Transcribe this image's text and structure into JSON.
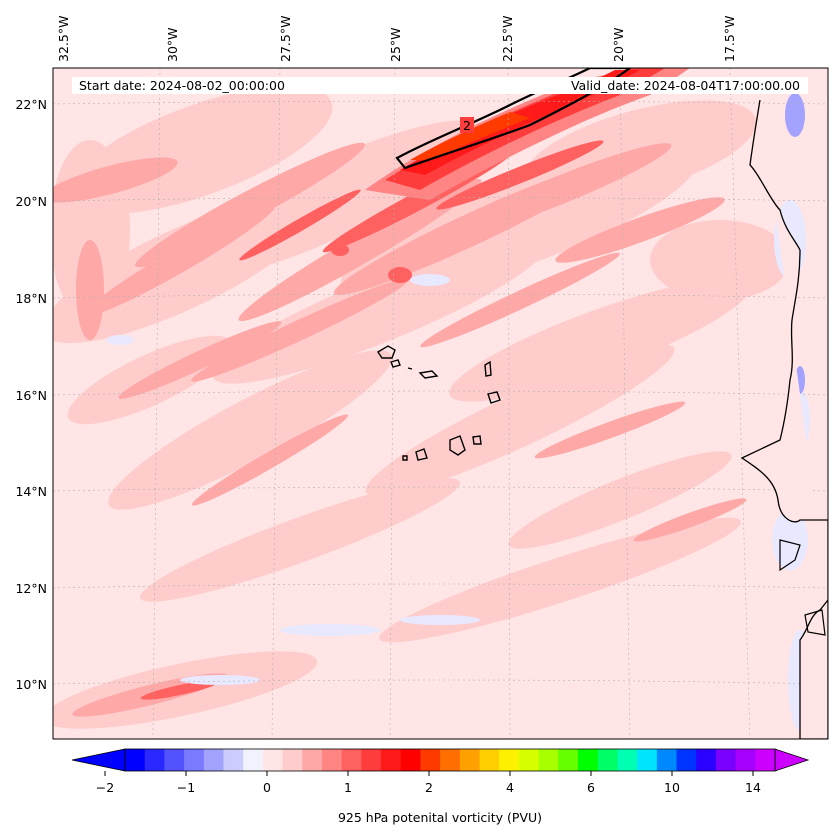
{
  "header": {
    "start_date": "Start date: 2024-08-02_00:00:00",
    "valid_date": "Valid_date: 2024-08-04T17:00:00.00"
  },
  "lon_ticks": [
    {
      "label": "32.5°W",
      "value": -32.5
    },
    {
      "label": "30°W",
      "value": -30
    },
    {
      "label": "27.5°W",
      "value": -27.5
    },
    {
      "label": "25°W",
      "value": -25
    },
    {
      "label": "22.5°W",
      "value": -22.5
    },
    {
      "label": "20°W",
      "value": -20
    },
    {
      "label": "17.5°W",
      "value": -17.5
    }
  ],
  "lat_ticks": [
    {
      "label": "22°N",
      "value": 22
    },
    {
      "label": "20°N",
      "value": 20
    },
    {
      "label": "18°N",
      "value": 18
    },
    {
      "label": "16°N",
      "value": 16
    },
    {
      "label": "14°N",
      "value": 14
    },
    {
      "label": "12°N",
      "value": 12
    },
    {
      "label": "10°N",
      "value": 10
    }
  ],
  "contour_label": "2",
  "colorbar": {
    "title": "925 hPa potenital vorticity (PVU)",
    "tick_labels": [
      "−2",
      "−1",
      "0",
      "1",
      "2",
      "4",
      "6",
      "10",
      "14"
    ],
    "colors": [
      "#0000ff",
      "#2929ff",
      "#5252ff",
      "#7a7aff",
      "#a3a3ff",
      "#ccccff",
      "#f2f2ff",
      "#ffe5e5",
      "#ffcccc",
      "#ffa8a8",
      "#ff8585",
      "#ff6161",
      "#ff3d3d",
      "#ff1a1a",
      "#ff0000",
      "#ff3a00",
      "#ff6f00",
      "#ff9f00",
      "#ffcf00",
      "#fff200",
      "#d7ff00",
      "#a8ff00",
      "#66ff00",
      "#00ff00",
      "#00ff66",
      "#00ffb2",
      "#00e5ff",
      "#0088ff",
      "#0033ff",
      "#2a00ff",
      "#7a00ff",
      "#a600ff",
      "#cc00ff"
    ],
    "under_color": "#0000ff",
    "over_color": "#cc00ff"
  },
  "colors": {
    "background_field": "#ffe5e5",
    "light_field": "#ffcccc",
    "medium_field": "#ffa8a8",
    "strong_field": "#ff6161",
    "max_field": "#ff1a1a",
    "negative_field": "#e8e8ff",
    "coastline": "#000000"
  }
}
